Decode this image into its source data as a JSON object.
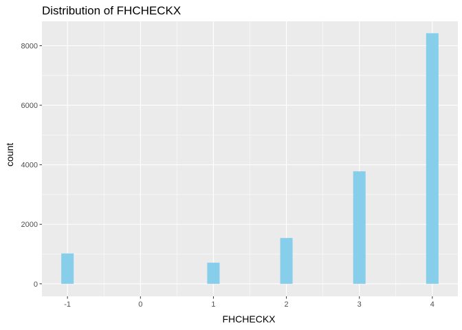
{
  "chart_data": {
    "type": "bar",
    "title": "Distribution of FHCHECKX",
    "xlabel": "FHCHECKX",
    "ylabel": "count",
    "x_ticks": [
      -1,
      0,
      1,
      2,
      3,
      4
    ],
    "y_ticks": [
      0,
      2000,
      4000,
      6000,
      8000
    ],
    "xlim": [
      -1.35,
      4.35
    ],
    "ylim": [
      -420,
      8820
    ],
    "bin_width": 0.17,
    "bars": [
      {
        "x": -1,
        "value": 1020
      },
      {
        "x": 1,
        "value": 710
      },
      {
        "x": 2,
        "value": 1540
      },
      {
        "x": 3,
        "value": 3780
      },
      {
        "x": 4,
        "value": 8420
      }
    ],
    "bar_color": "#87CEEB",
    "panel_color": "#EBEBEB",
    "grid": true
  }
}
